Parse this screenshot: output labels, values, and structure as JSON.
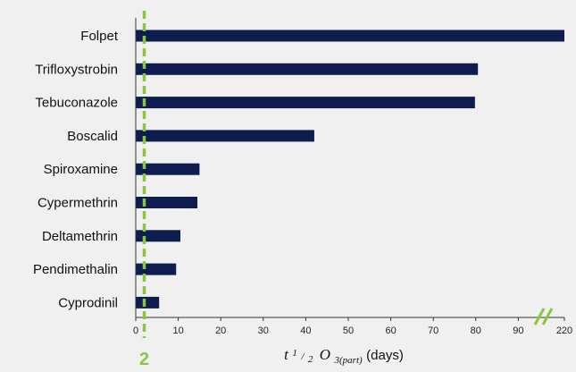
{
  "chart_data": {
    "type": "bar",
    "orientation": "horizontal",
    "categories": [
      "Folpet",
      "Trifloxystrobin",
      "Tebuconazole",
      "Boscalid",
      "Spiroxamine",
      "Cypermethrin",
      "Deltamethrin",
      "Pendimethalin",
      "Cyprodinil"
    ],
    "values": [
      220,
      80.5,
      79.8,
      42,
      15,
      14.5,
      10.5,
      9.5,
      5.5
    ],
    "x_ticks": [
      "0",
      "10",
      "20",
      "30",
      "40",
      "50",
      "60",
      "70",
      "80",
      "90",
      "220"
    ],
    "x_tick_values": [
      0,
      10,
      20,
      30,
      40,
      50,
      60,
      70,
      80,
      90,
      220
    ],
    "axis_break": {
      "from": 90,
      "to": 220
    },
    "xlabel": {
      "main": "t",
      "frac_num": "1",
      "frac_sep": "/",
      "frac_den": "2",
      "species": "O",
      "subscript": "3(part)",
      "unit": "(days)"
    },
    "reference_line": {
      "value": 2,
      "label": "2",
      "color": "#8cc63f",
      "style": "dashed"
    },
    "bar_color": "#0d1d4f",
    "grid": false
  }
}
